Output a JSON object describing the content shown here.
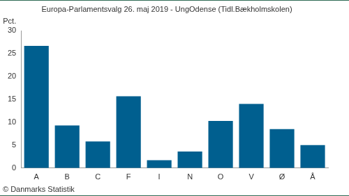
{
  "chart_data": {
    "type": "bar",
    "title": "Europa-Parlamentsvalg 26. maj 2019 - UngOdense (Tidl.Bækholmskolen)",
    "ylabel": "Pct.",
    "source": "© Danmarks Statistik",
    "categories": [
      "A",
      "B",
      "C",
      "F",
      "I",
      "N",
      "O",
      "V",
      "Ø",
      "Å"
    ],
    "values": [
      26.7,
      9.3,
      5.8,
      15.7,
      1.7,
      3.6,
      10.3,
      14.0,
      8.5,
      5.0
    ],
    "color": "#005f8f",
    "ylim": [
      0,
      30
    ],
    "yticks": [
      0,
      5,
      10,
      15,
      20,
      25,
      30
    ],
    "grid": false
  }
}
